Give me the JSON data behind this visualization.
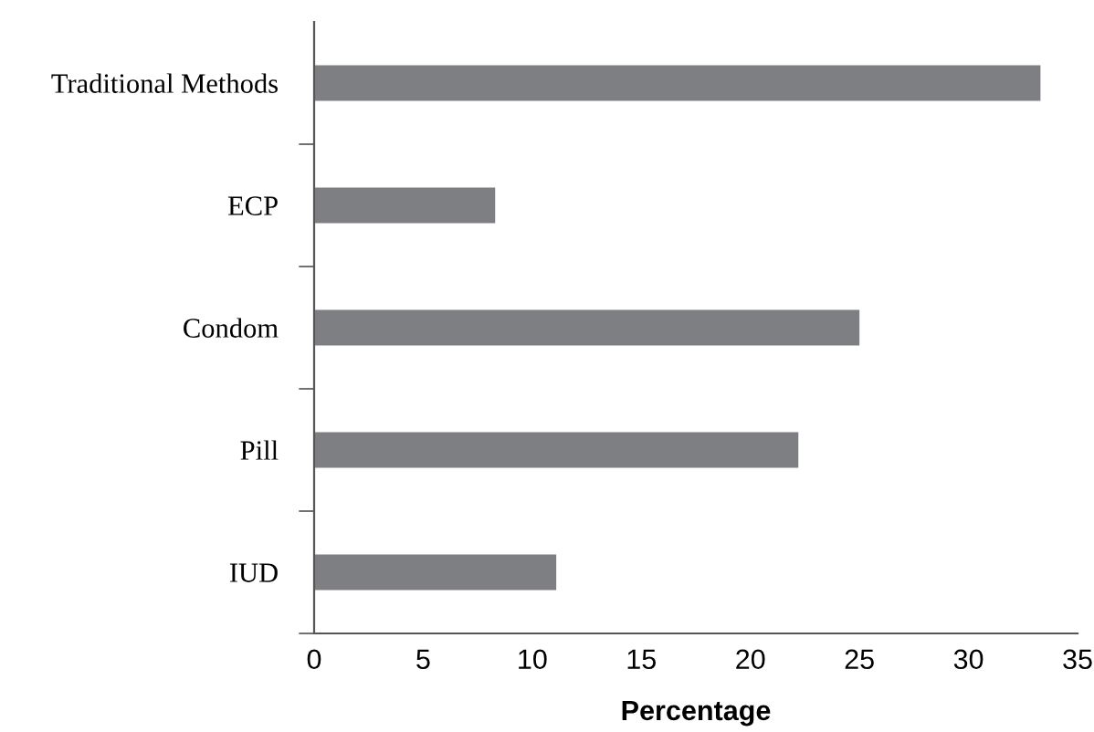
{
  "chart_data": {
    "type": "bar",
    "orientation": "horizontal",
    "xlabel": "Percentage",
    "categories": [
      "Traditional Methods",
      "ECP",
      "Condom",
      "Pill",
      "IUD"
    ],
    "values": [
      33.3,
      8.3,
      25.0,
      22.2,
      11.1
    ],
    "color": "#7e7f83",
    "xlim": [
      0,
      35
    ],
    "xticks": [
      0,
      5,
      10,
      15,
      20,
      25,
      30,
      35
    ],
    "grid": false,
    "legend": false
  }
}
